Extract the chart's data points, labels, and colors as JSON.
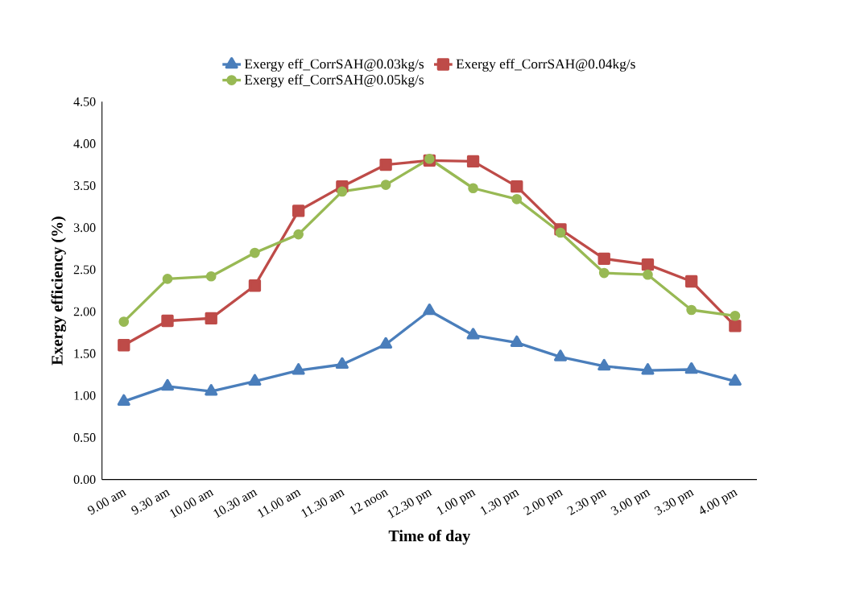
{
  "chart_data": {
    "type": "line",
    "xlabel": "Time of day",
    "ylabel": "Exergy efficiency (%)",
    "categories": [
      "9.00 am",
      "9.30 am",
      "10.00 am",
      "10.30 am",
      "11.00 am",
      "11.30 am",
      "12 noon",
      "12.30 pm",
      "1.00 pm",
      "1.30 pm",
      "2.00 pm",
      "2.30 pm",
      "3.00 pm",
      "3.30 pm",
      "4.00 pm"
    ],
    "series": [
      {
        "name": "Exergy eff_CorrSAH@0.03kg/s",
        "color": "#4a7ebb",
        "marker": "triangle",
        "values": [
          0.93,
          1.11,
          1.05,
          1.17,
          1.3,
          1.37,
          1.61,
          2.01,
          1.72,
          1.63,
          1.46,
          1.35,
          1.3,
          1.31,
          1.17
        ]
      },
      {
        "name": "Exergy eff_CorrSAH@0.04kg/s",
        "color": "#be4b48",
        "marker": "square",
        "values": [
          1.6,
          1.89,
          1.92,
          2.31,
          3.2,
          3.49,
          3.75,
          3.8,
          3.79,
          3.49,
          2.98,
          2.63,
          2.56,
          2.36,
          1.83
        ]
      },
      {
        "name": "Exergy eff_CorrSAH@0.05kg/s",
        "color": "#98b954",
        "marker": "circle",
        "values": [
          1.88,
          2.39,
          2.42,
          2.7,
          2.92,
          3.43,
          3.51,
          3.82,
          3.47,
          3.34,
          2.94,
          2.46,
          2.44,
          2.02,
          1.95
        ]
      }
    ],
    "ylim": [
      0,
      4.5
    ],
    "yticks": [
      {
        "value": 0,
        "label": "0.00"
      },
      {
        "value": 0.5,
        "label": "0.50"
      },
      {
        "value": 1,
        "label": "1.00"
      },
      {
        "value": 1.5,
        "label": "1.50"
      },
      {
        "value": 2,
        "label": "2.00"
      },
      {
        "value": 2.5,
        "label": "2.50"
      },
      {
        "value": 3,
        "label": "3.00"
      },
      {
        "value": 3.5,
        "label": "3.50"
      },
      {
        "value": 4,
        "label": "4.00"
      },
      {
        "value": 4.5,
        "label": "4.50"
      }
    ],
    "grid": false,
    "legend": "top",
    "line_style": "solid"
  }
}
